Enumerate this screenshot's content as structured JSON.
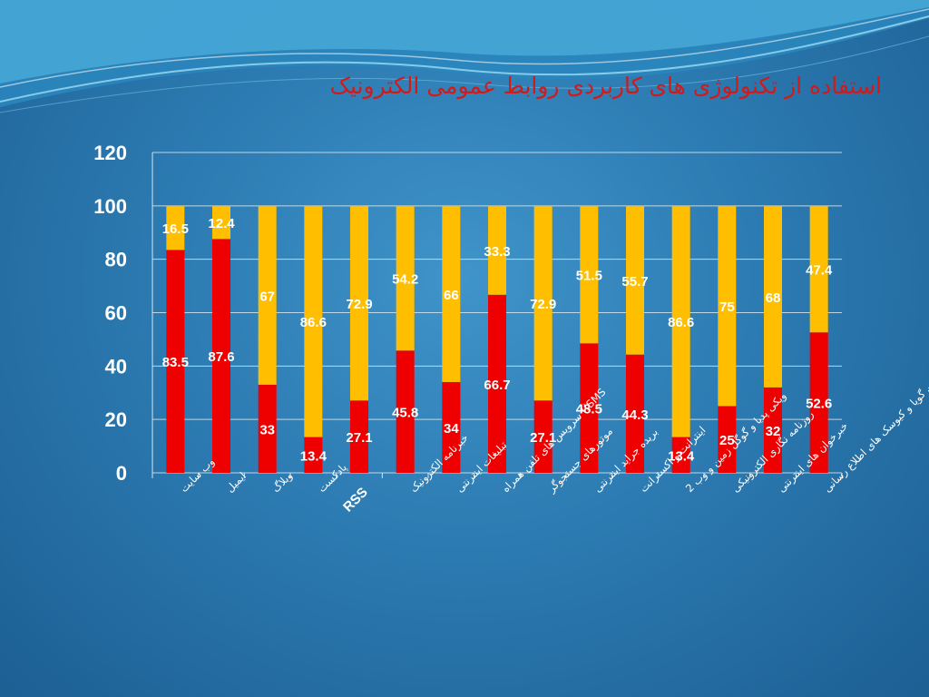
{
  "slide": {
    "title": "استفاده از تکنولوژی های کاربردی روابط عمومی الکترونیک"
  },
  "colors": {
    "series_bottom": "#ee0000",
    "series_top": "#ffbf00",
    "gridline": "#d8e6f0",
    "text": "#ffffff",
    "title": "#d21a1a"
  },
  "chart_data": {
    "type": "bar",
    "stacked": true,
    "title": "",
    "xlabel": "",
    "ylabel": "",
    "ylim": [
      0,
      120
    ],
    "yticks": [
      0,
      20,
      40,
      60,
      80,
      100,
      120
    ],
    "grid": true,
    "legend": "none",
    "categories": [
      "وب سایت",
      "ایمیل",
      "وبلاگ",
      "پادکست",
      "RSS",
      "خبرنامه الکترونیک",
      "تبلیغات اینترنتی",
      "SMS)) سرویس های تلفن همراه",
      "موتورهای جستجوگر",
      "بریده جراید اینترنتی",
      "اینترانت و اکسترانت",
      "ویکی پدیا و گوگل زمین و وب 2",
      "روزنامه نگاری الکترونیکی",
      "خبرخوان های اینترنتی",
      "تلفن گویا و کیوسک های اطلاع رسانی"
    ],
    "series": [
      {
        "values": [
          83.5,
          87.6,
          33,
          13.4,
          27.1,
          45.8,
          34,
          66.7,
          27.1,
          48.5,
          44.3,
          13.4,
          25,
          32,
          52.6
        ]
      },
      {
        "values": [
          16.5,
          12.4,
          67,
          86.6,
          72.9,
          54.2,
          66,
          33.3,
          72.9,
          51.5,
          55.7,
          86.6,
          75,
          68,
          47.4
        ]
      }
    ]
  }
}
